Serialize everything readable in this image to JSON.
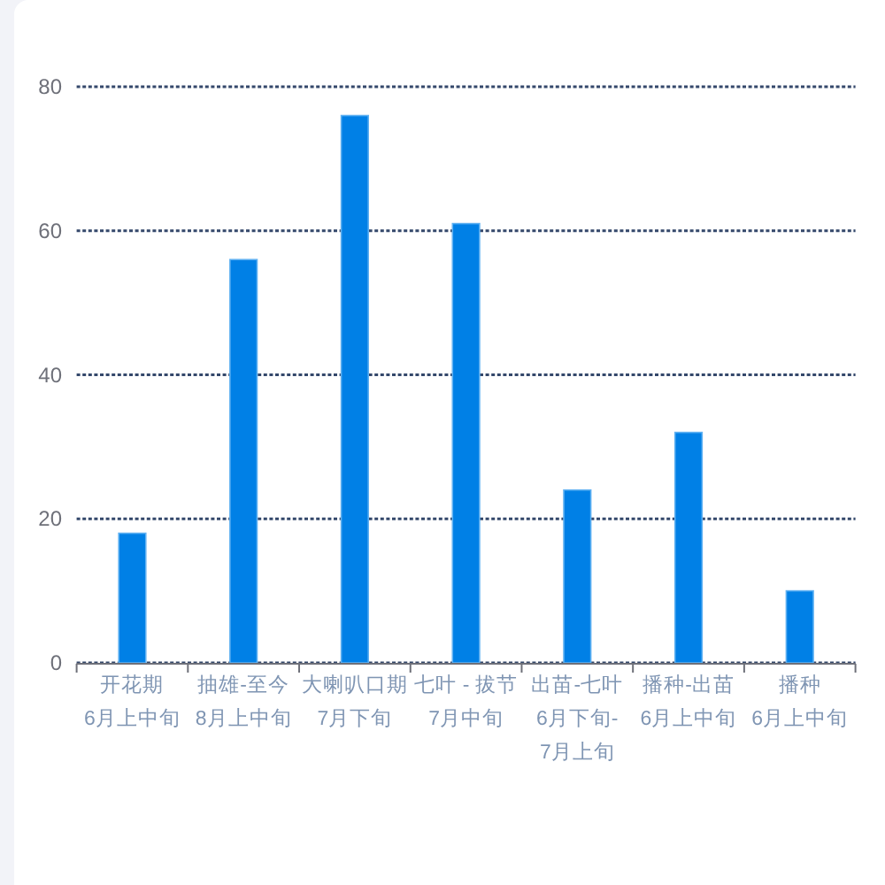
{
  "chart_data": {
    "type": "bar",
    "categories": [
      "开花期\n6月上中旬",
      "抽雄-至今\n8月上中旬",
      "大喇叭口期\n7月下旬",
      "七叶 - 拔节\n7月中旬",
      "出苗-七叶\n6月下旬-7月上旬",
      "播种-出苗\n6月上中旬",
      "播种\n6月上中旬"
    ],
    "values": [
      18,
      56,
      76,
      61,
      24,
      32,
      10
    ],
    "color": "#0080e6",
    "ylim": [
      0,
      80
    ],
    "yticks": [
      0,
      20,
      40,
      60,
      80
    ],
    "grid": "y"
  }
}
